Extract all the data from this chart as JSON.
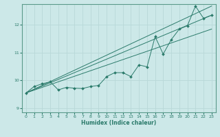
{
  "title": "",
  "xlabel": "Humidex (Indice chaleur)",
  "ylabel": "",
  "bg_color": "#cce8e8",
  "grid_color": "#b8d8d8",
  "line_color": "#2a7a6a",
  "xlim": [
    -0.5,
    23.5
  ],
  "ylim": [
    8.85,
    12.75
  ],
  "xticks": [
    0,
    1,
    2,
    3,
    4,
    5,
    6,
    7,
    8,
    9,
    10,
    11,
    12,
    13,
    14,
    15,
    16,
    17,
    18,
    19,
    20,
    21,
    22,
    23
  ],
  "yticks": [
    9,
    10,
    11,
    12
  ],
  "data_x": [
    0,
    1,
    2,
    3,
    4,
    5,
    6,
    7,
    8,
    9,
    10,
    11,
    12,
    13,
    14,
    15,
    16,
    17,
    18,
    19,
    20,
    21,
    22,
    23
  ],
  "data_y": [
    9.55,
    9.78,
    9.88,
    9.95,
    9.66,
    9.75,
    9.72,
    9.71,
    9.78,
    9.82,
    10.14,
    10.28,
    10.28,
    10.14,
    10.56,
    10.49,
    11.58,
    10.95,
    11.47,
    11.85,
    11.97,
    12.68,
    12.24,
    12.35
  ],
  "line1_x": [
    0,
    23
  ],
  "line1_y": [
    9.55,
    12.68
  ],
  "line2_x": [
    0,
    23
  ],
  "line2_y": [
    9.55,
    12.35
  ],
  "line3_x": [
    0,
    23
  ],
  "line3_y": [
    9.55,
    11.85
  ]
}
